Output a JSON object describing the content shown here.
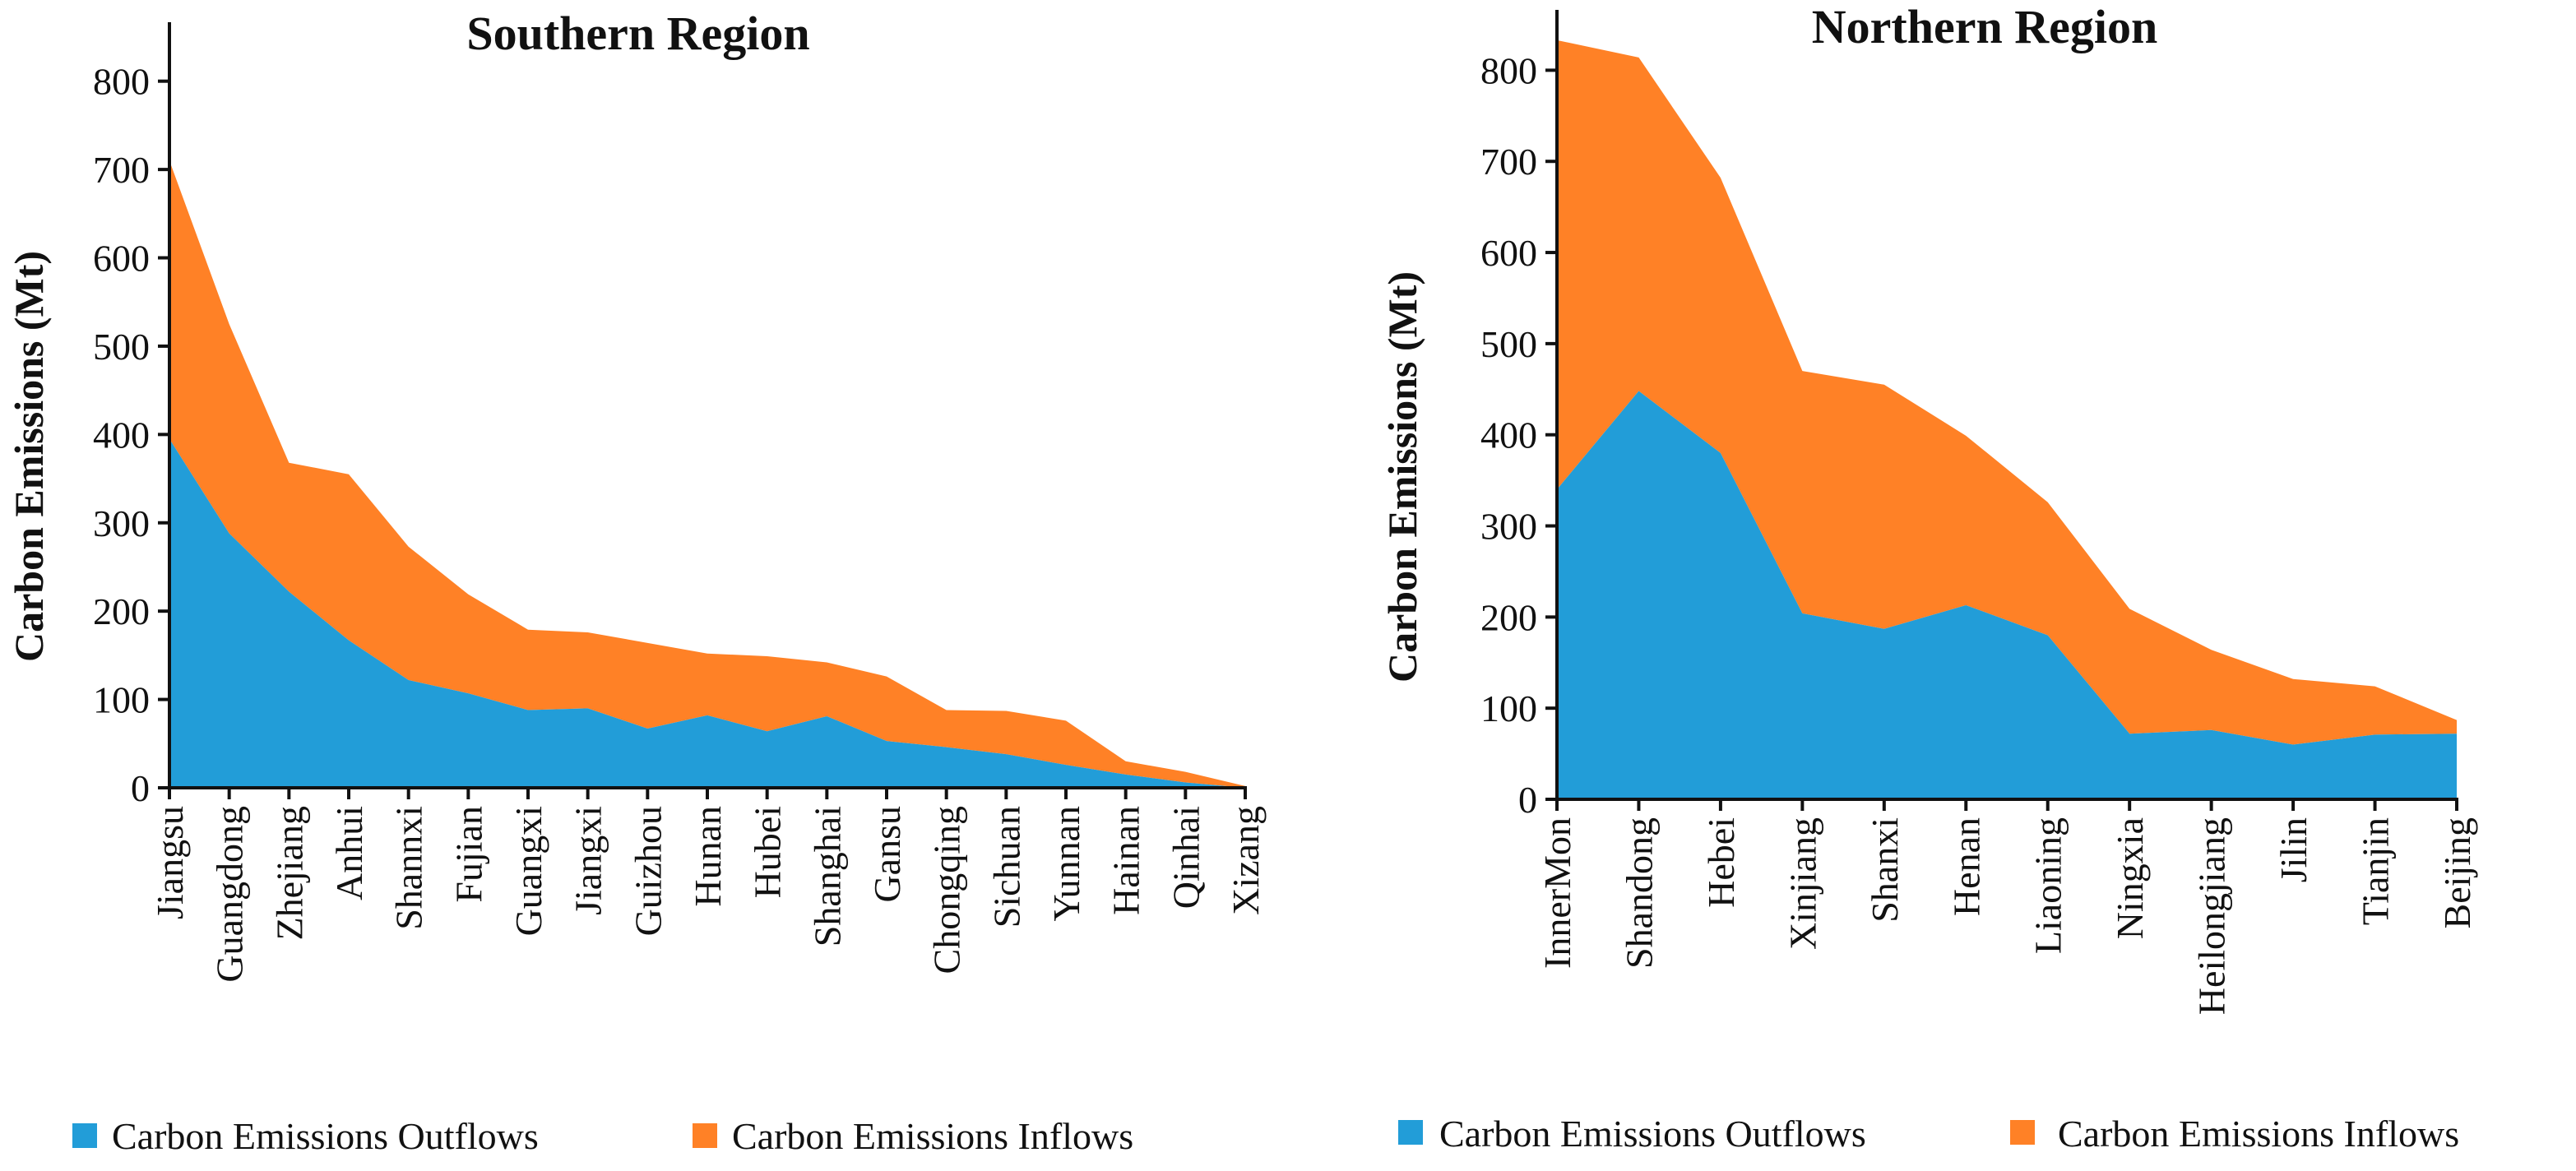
{
  "colors": {
    "outflow": "#229DD8",
    "inflow": "#FF8126",
    "axis": "#111111"
  },
  "chart_data": [
    {
      "type": "area",
      "stacked": true,
      "title": "Southern Region",
      "ylabel": "Carbon Emissions (Mt)",
      "xlabel": "",
      "ylim": [
        0,
        850
      ],
      "yticks": [
        0,
        100,
        200,
        300,
        400,
        500,
        600,
        700,
        800
      ],
      "categories": [
        "Jiangsu",
        "Guangdong",
        "Zhejiang",
        "Anhui",
        "Shannxi",
        "Fujian",
        "Guangxi",
        "Jiangxi",
        "Guizhou",
        "Hunan",
        "Hubei",
        "Shanghai",
        "Gansu",
        "Chongqing",
        "Sichuan",
        "Yunnan",
        "Hainan",
        "Qinhai",
        "Xizang"
      ],
      "series": [
        {
          "name": "Carbon Emissions Outflows",
          "values": [
            395,
            288,
            222,
            167,
            122,
            107,
            88,
            90,
            67,
            82,
            64,
            81,
            53,
            46,
            38,
            26,
            15,
            6,
            0
          ]
        },
        {
          "name": "Carbon Emissions Inflows",
          "values": [
            315,
            237,
            146,
            188,
            151,
            112,
            91,
            86,
            97,
            70,
            85,
            61,
            73,
            42,
            49,
            50,
            15,
            12,
            2
          ]
        }
      ],
      "legend": "bottom"
    },
    {
      "type": "area",
      "stacked": true,
      "title": "Northern Region",
      "ylabel": "Carbon Emissions (Mt)",
      "xlabel": "",
      "ylim": [
        0,
        850
      ],
      "yticks": [
        0,
        100,
        200,
        300,
        400,
        500,
        600,
        700,
        800
      ],
      "categories": [
        "InnerMon",
        "Shandong",
        "Hebei",
        "Xinjiang",
        "Shanxi",
        "Henan",
        "Liaoning",
        "Ningxia",
        "Heilongjiang",
        "Jilin",
        "Tianjin",
        "Beijing"
      ],
      "series": [
        {
          "name": "Carbon Emissions Outflows",
          "values": [
            340,
            448,
            380,
            204,
            187,
            213,
            180,
            72,
            76,
            60,
            71,
            72
          ]
        },
        {
          "name": "Carbon Emissions Inflows",
          "values": [
            493,
            366,
            302,
            266,
            268,
            186,
            146,
            137,
            88,
            72,
            53,
            15
          ]
        }
      ],
      "legend": "bottom"
    }
  ]
}
